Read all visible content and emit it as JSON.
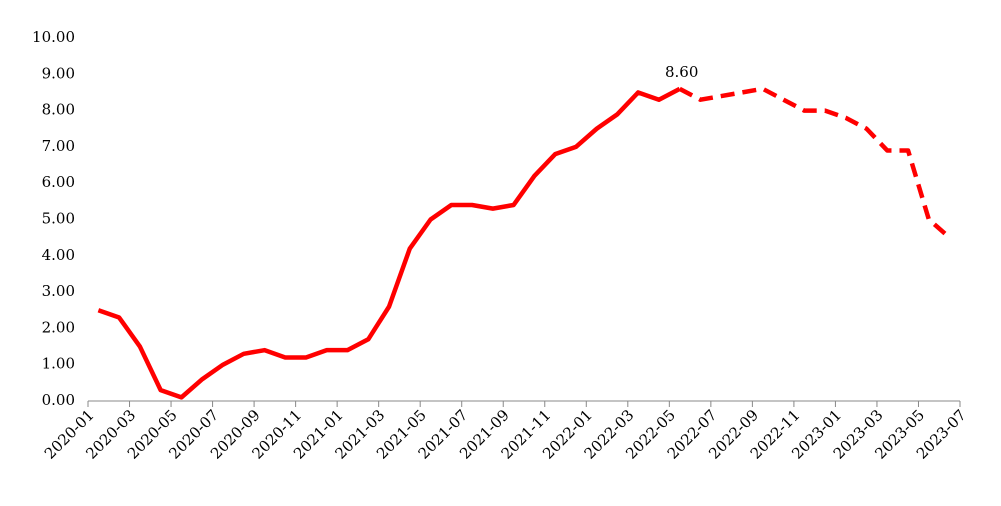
{
  "chart_data": {
    "type": "line",
    "categories": [
      "2020-01",
      null,
      "2020-03",
      null,
      "2020-05",
      null,
      "2020-07",
      null,
      "2020-09",
      null,
      "2020-11",
      null,
      "2021-01",
      null,
      "2021-03",
      null,
      "2021-05",
      null,
      "2021-07",
      null,
      "2021-09",
      null,
      "2021-11",
      null,
      "2022-01",
      null,
      "2022-03",
      null,
      "2022-05",
      null,
      "2022-07",
      null,
      "2022-09",
      null,
      "2022-11",
      null,
      "2023-01",
      null,
      "2023-03",
      null,
      "2023-05",
      null,
      "2023-07"
    ],
    "series": [
      {
        "color": "#ff0000",
        "dash": false,
        "values": [
          2.5,
          2.3,
          1.5,
          0.3,
          0.1,
          0.6,
          1.0,
          1.3,
          1.4,
          1.2,
          1.2,
          1.4,
          1.4,
          1.7,
          2.6,
          4.2,
          5.0,
          5.4,
          5.4,
          5.3,
          5.4,
          6.2,
          6.8,
          7.0,
          7.5,
          7.9,
          8.5,
          8.3,
          8.6,
          null,
          null,
          null,
          null,
          null,
          null,
          null,
          null,
          null,
          null,
          null,
          null,
          null,
          null
        ],
        "value_labels": [
          null,
          null,
          null,
          null,
          null,
          null,
          null,
          null,
          null,
          null,
          null,
          null,
          null,
          null,
          null,
          null,
          null,
          null,
          null,
          null,
          null,
          null,
          null,
          null,
          null,
          null,
          null,
          null,
          "8.60",
          null,
          null,
          null,
          null,
          null,
          null,
          null,
          null,
          null,
          null,
          null,
          null,
          null,
          null
        ]
      },
      {
        "color": "#ff0000",
        "dash": true,
        "values": [
          null,
          null,
          null,
          null,
          null,
          null,
          null,
          null,
          null,
          null,
          null,
          null,
          null,
          null,
          null,
          null,
          null,
          null,
          null,
          null,
          null,
          null,
          null,
          null,
          null,
          null,
          null,
          null,
          8.6,
          8.3,
          8.4,
          8.5,
          8.6,
          8.3,
          8.0,
          8.0,
          7.8,
          7.5,
          6.9,
          6.9,
          5.0,
          4.5,
          null
        ]
      }
    ],
    "ylim": [
      0,
      10
    ],
    "yticks": [
      {
        "value": 0,
        "label": "0.00"
      },
      {
        "value": 1,
        "label": "1.00"
      },
      {
        "value": 2,
        "label": "2.00"
      },
      {
        "value": 3,
        "label": "3.00"
      },
      {
        "value": 4,
        "label": "4.00"
      },
      {
        "value": 5,
        "label": "5.00"
      },
      {
        "value": 6,
        "label": "6.00"
      },
      {
        "value": 7,
        "label": "7.00"
      },
      {
        "value": 8,
        "label": "8.00"
      },
      {
        "value": 9,
        "label": "9.00"
      },
      {
        "value": 10,
        "label": "10.00"
      }
    ],
    "grid": false
  }
}
